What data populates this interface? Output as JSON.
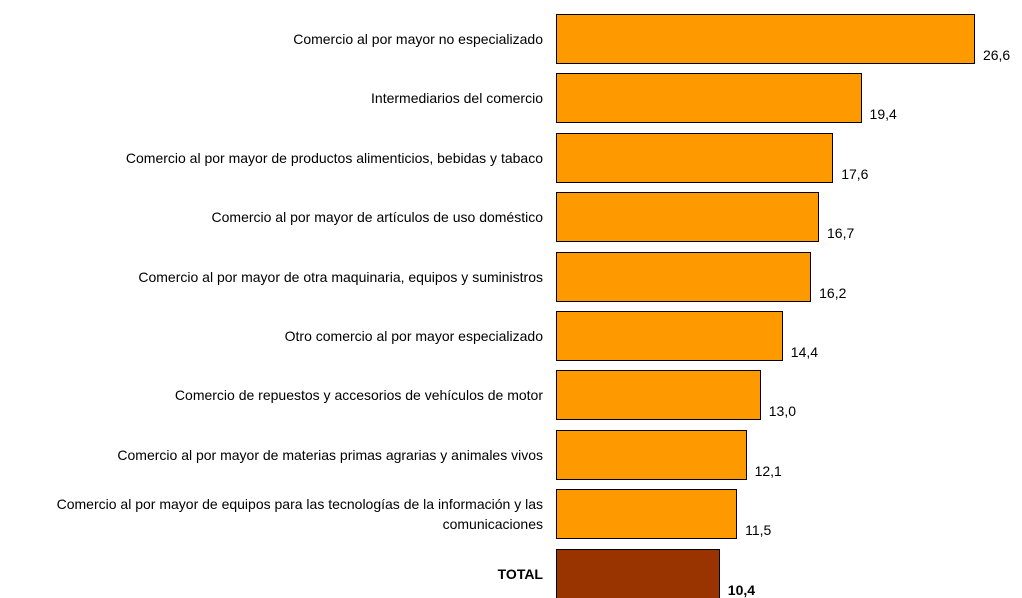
{
  "chart_data": {
    "type": "bar",
    "orientation": "horizontal",
    "categories": [
      "Comercio al por mayor no especializado",
      "Intermediarios del comercio",
      "Comercio al por mayor de productos alimenticios, bebidas y tabaco",
      "Comercio al por mayor de artículos de uso doméstico",
      "Comercio al por mayor de otra maquinaria, equipos y suministros",
      "Otro comercio al por mayor especializado",
      "Comercio de repuestos y accesorios de vehículos de motor",
      "Comercio al por mayor de materias primas agrarias y animales vivos",
      "Comercio al por mayor de equipos para las tecnologías de la información y las comunicaciones",
      "TOTAL"
    ],
    "values": [
      26.6,
      19.4,
      17.6,
      16.7,
      16.2,
      14.4,
      13.0,
      12.1,
      11.5,
      10.4
    ],
    "value_labels": [
      "26,6",
      "19,4",
      "17,6",
      "16,7",
      "16,2",
      "14,4",
      "13,0",
      "12,1",
      "11,5",
      "10,4"
    ],
    "colors": [
      "#ff9900",
      "#ff9900",
      "#ff9900",
      "#ff9900",
      "#ff9900",
      "#ff9900",
      "#ff9900",
      "#ff9900",
      "#ff9900",
      "#993300"
    ],
    "xlim": [
      0,
      28
    ]
  }
}
